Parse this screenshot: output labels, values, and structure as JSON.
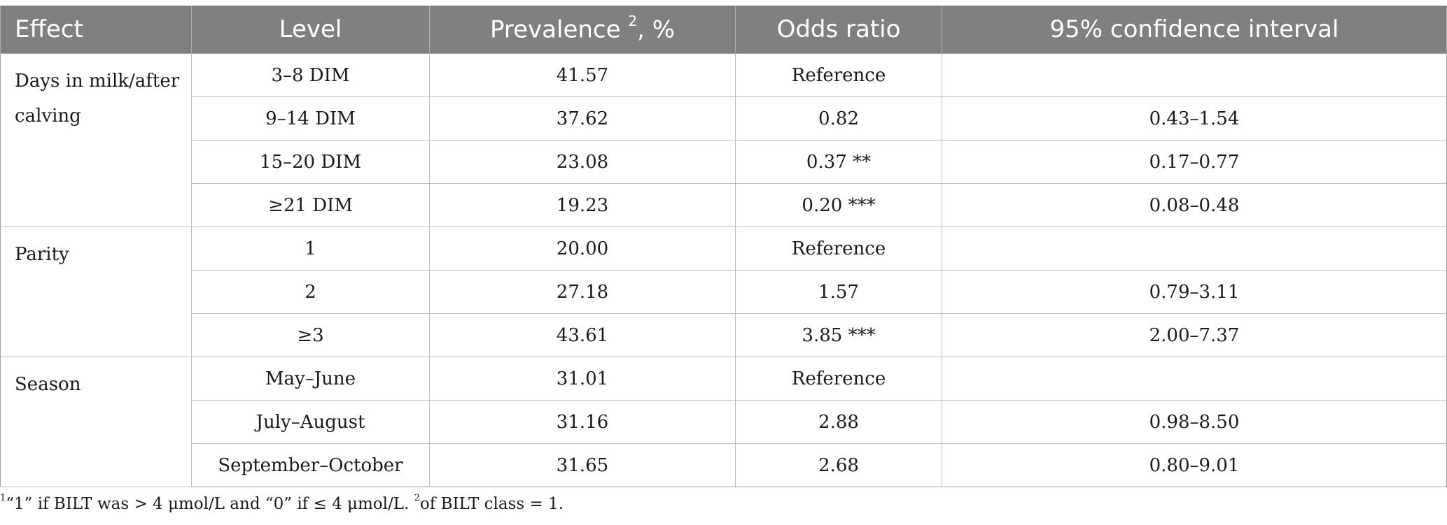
{
  "table": {
    "headers": {
      "effect": "Effect",
      "level": "Level",
      "prevalence": "Prevalence",
      "prevalence_sup": "2",
      "prevalence_suffix": ", %",
      "odds_ratio": "Odds ratio",
      "ci": "95% confidence interval"
    },
    "groups": [
      {
        "effect": "Days in milk/after calving",
        "rows": [
          {
            "level": "3–8 DIM",
            "prevalence": "41.57",
            "odds_ratio": "Reference",
            "ci": ""
          },
          {
            "level": "9–14 DIM",
            "prevalence": "37.62",
            "odds_ratio": "0.82",
            "ci": "0.43–1.54"
          },
          {
            "level": "15–20 DIM",
            "prevalence": "23.08",
            "odds_ratio": "0.37 **",
            "ci": "0.17–0.77"
          },
          {
            "level": "≥21 DIM",
            "prevalence": "19.23",
            "odds_ratio": "0.20 ***",
            "ci": "0.08–0.48"
          }
        ]
      },
      {
        "effect": "Parity",
        "rows": [
          {
            "level": "1",
            "prevalence": "20.00",
            "odds_ratio": "Reference",
            "ci": ""
          },
          {
            "level": "2",
            "prevalence": "27.18",
            "odds_ratio": "1.57",
            "ci": "0.79–3.11"
          },
          {
            "level": "≥3",
            "prevalence": "43.61",
            "odds_ratio": "3.85 ***",
            "ci": "2.00–7.37"
          }
        ]
      },
      {
        "effect": "Season",
        "rows": [
          {
            "level": "May–June",
            "prevalence": "31.01",
            "odds_ratio": "Reference",
            "ci": ""
          },
          {
            "level": "July–August",
            "prevalence": "31.16",
            "odds_ratio": "2.88",
            "ci": "0.98–8.50"
          },
          {
            "level": "September–October",
            "prevalence": "31.65",
            "odds_ratio": "2.68",
            "ci": "0.80–9.01"
          }
        ]
      }
    ]
  },
  "footnote": {
    "marker1": "1",
    "text1": "“1” if BILT was > 4 μmol/L and “0” if ≤ 4 μmol/L. ",
    "marker2": "2",
    "text2": "of BILT class = 1."
  }
}
